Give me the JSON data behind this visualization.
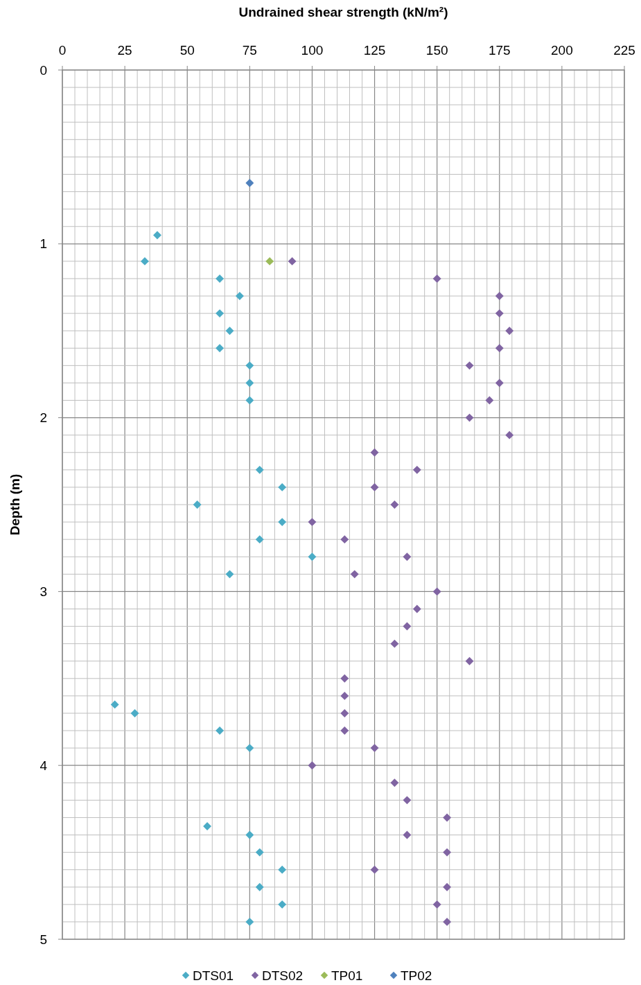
{
  "chart_data": {
    "type": "scatter",
    "xlabel": "Undrained shear strength (kN/m²)",
    "ylabel": "Depth (m)",
    "xlim": [
      0,
      225
    ],
    "ylim": [
      5,
      0
    ],
    "xticks": [
      0,
      {
        "value": 5,
        "label": null
      },
      {
        "value": 10,
        "label": null
      },
      {
        "value": 15,
        "label": null
      },
      {
        "value": 20,
        "label": null
      },
      25,
      {
        "value": 30,
        "label": null
      },
      {
        "value": 35,
        "label": null
      },
      {
        "value": 40,
        "label": null
      },
      {
        "value": 45,
        "label": null
      },
      50,
      {
        "value": 55,
        "label": null
      },
      {
        "value": 60,
        "label": null
      },
      {
        "value": 65,
        "label": null
      },
      {
        "value": 70,
        "label": null
      },
      75,
      {
        "value": 80,
        "label": null
      },
      {
        "value": 85,
        "label": null
      },
      {
        "value": 90,
        "label": null
      },
      {
        "value": 95,
        "label": null
      },
      100,
      {
        "value": 105,
        "label": null
      },
      {
        "value": 110,
        "label": null
      },
      {
        "value": 115,
        "label": null
      },
      {
        "value": 120,
        "label": null
      },
      125,
      {
        "value": 130,
        "label": null
      },
      {
        "value": 135,
        "label": null
      },
      {
        "value": 140,
        "label": null
      },
      {
        "value": 145,
        "label": null
      },
      150,
      {
        "value": 155,
        "label": null
      },
      {
        "value": 160,
        "label": null
      },
      {
        "value": 165,
        "label": null
      },
      {
        "value": 170,
        "label": null
      },
      175,
      {
        "value": 180,
        "label": null
      },
      {
        "value": 185,
        "label": null
      },
      {
        "value": 190,
        "label": null
      },
      {
        "value": 195,
        "label": null
      },
      200,
      {
        "value": 205,
        "label": null
      },
      {
        "value": 210,
        "label": null
      },
      {
        "value": 215,
        "label": null
      },
      {
        "value": 220,
        "label": null
      },
      225
    ],
    "yticks": [
      0,
      {
        "value": 0.1,
        "label": null
      },
      {
        "value": 0.2,
        "label": null
      },
      {
        "value": 0.3,
        "label": null
      },
      {
        "value": 0.4,
        "label": null
      },
      {
        "value": 0.5,
        "label": null
      },
      {
        "value": 0.6,
        "label": null
      },
      {
        "value": 0.7,
        "label": null
      },
      {
        "value": 0.8,
        "label": null
      },
      {
        "value": 0.9,
        "label": null
      },
      1,
      {
        "value": 1.1,
        "label": null
      },
      {
        "value": 1.2,
        "label": null
      },
      {
        "value": 1.3,
        "label": null
      },
      {
        "value": 1.4,
        "label": null
      },
      {
        "value": 1.5,
        "label": null
      },
      {
        "value": 1.6,
        "label": null
      },
      {
        "value": 1.7,
        "label": null
      },
      {
        "value": 1.8,
        "label": null
      },
      {
        "value": 1.9,
        "label": null
      },
      2,
      {
        "value": 2.1,
        "label": null
      },
      {
        "value": 2.2,
        "label": null
      },
      {
        "value": 2.3,
        "label": null
      },
      {
        "value": 2.4,
        "label": null
      },
      {
        "value": 2.5,
        "label": null
      },
      {
        "value": 2.6,
        "label": null
      },
      {
        "value": 2.7,
        "label": null
      },
      {
        "value": 2.8,
        "label": null
      },
      {
        "value": 2.9,
        "label": null
      },
      3,
      {
        "value": 3.1,
        "label": null
      },
      {
        "value": 3.2,
        "label": null
      },
      {
        "value": 3.3,
        "label": null
      },
      {
        "value": 3.4,
        "label": null
      },
      {
        "value": 3.5,
        "label": null
      },
      {
        "value": 3.6,
        "label": null
      },
      {
        "value": 3.7,
        "label": null
      },
      {
        "value": 3.8,
        "label": null
      },
      {
        "value": 3.9,
        "label": null
      },
      4,
      {
        "value": 4.1,
        "label": null
      },
      {
        "value": 4.2,
        "label": null
      },
      {
        "value": 4.3,
        "label": null
      },
      {
        "value": 4.4,
        "label": null
      },
      {
        "value": 4.5,
        "label": null
      },
      {
        "value": 4.6,
        "label": null
      },
      {
        "value": 4.7,
        "label": null
      },
      {
        "value": 4.8,
        "label": null
      },
      {
        "value": 4.9,
        "label": null
      },
      5
    ],
    "grid": true,
    "legend": "bottom",
    "marker": "diamond",
    "series": [
      {
        "name": "DTS01",
        "color": "#4bacc6",
        "x": [
          38,
          33,
          63,
          71,
          63,
          67,
          63,
          75,
          75,
          75,
          79,
          88,
          54,
          88,
          79,
          100,
          67,
          21,
          29,
          63,
          75,
          58,
          75,
          79,
          88,
          79,
          88,
          75
        ],
        "values": [
          0.95,
          1.1,
          1.2,
          1.3,
          1.4,
          1.5,
          1.6,
          1.7,
          1.8,
          1.9,
          2.3,
          2.4,
          2.5,
          2.6,
          2.7,
          2.8,
          2.9,
          3.65,
          3.7,
          3.8,
          3.9,
          4.35,
          4.4,
          4.5,
          4.6,
          4.7,
          4.8,
          4.9
        ]
      },
      {
        "name": "DTS02",
        "color": "#8064a2",
        "x": [
          92,
          150,
          175,
          175,
          179,
          175,
          163,
          175,
          171,
          163,
          179,
          125,
          142,
          125,
          133,
          100,
          113,
          138,
          117,
          150,
          142,
          138,
          133,
          163,
          113,
          113,
          113,
          113,
          125,
          100,
          133,
          138,
          154,
          138,
          154,
          125,
          154,
          150,
          154
        ],
        "values": [
          1.1,
          1.2,
          1.3,
          1.4,
          1.5,
          1.6,
          1.7,
          1.8,
          1.9,
          2.0,
          2.1,
          2.2,
          2.3,
          2.4,
          2.5,
          2.6,
          2.7,
          2.8,
          2.9,
          3.0,
          3.1,
          3.2,
          3.3,
          3.4,
          3.5,
          3.6,
          3.7,
          3.8,
          3.9,
          4.0,
          4.1,
          4.2,
          4.3,
          4.4,
          4.5,
          4.6,
          4.7,
          4.8,
          4.9
        ]
      },
      {
        "name": "TP01",
        "color": "#9bbb59",
        "x": [
          83
        ],
        "values": [
          1.1
        ]
      },
      {
        "name": "TP02",
        "color": "#4f81bd",
        "x": [
          75
        ],
        "values": [
          0.65
        ]
      }
    ]
  }
}
